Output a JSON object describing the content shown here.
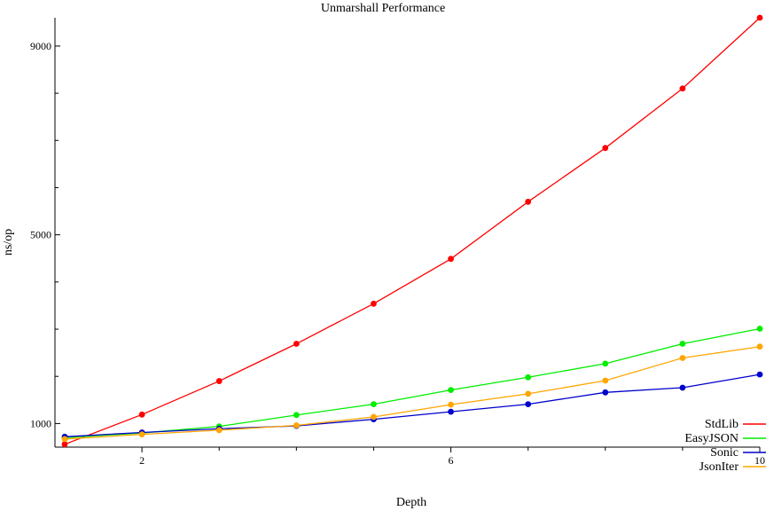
{
  "chart_data": {
    "type": "line",
    "title": "Unmarshall Performance",
    "xlabel": "Depth",
    "ylabel": "ns/op",
    "xlim": [
      1,
      10
    ],
    "ylim": [
      500,
      9600
    ],
    "x_ticks": [
      2,
      6,
      10
    ],
    "y_ticks": [
      1000,
      5000,
      9000
    ],
    "grid": false,
    "legend_position": "bottom-right",
    "x": [
      1,
      2,
      3,
      4,
      5,
      6,
      7,
      8,
      9,
      10
    ],
    "series": [
      {
        "name": "StdLib",
        "color": "#ff0000",
        "values": [
          560,
          1190,
          1900,
          2690,
          3540,
          4490,
          5700,
          6840,
          8100,
          9600
        ]
      },
      {
        "name": "EasyJSON",
        "color": "#00ee00",
        "values": [
          700,
          800,
          940,
          1180,
          1410,
          1710,
          1980,
          2270,
          2690,
          3010
        ]
      },
      {
        "name": "Sonic",
        "color": "#0000cc",
        "values": [
          720,
          810,
          890,
          950,
          1090,
          1250,
          1410,
          1660,
          1760,
          2040
        ]
      },
      {
        "name": "JsonIter",
        "color": "#ffa500",
        "values": [
          670,
          770,
          860,
          960,
          1140,
          1400,
          1630,
          1910,
          2390,
          2630
        ]
      }
    ]
  }
}
